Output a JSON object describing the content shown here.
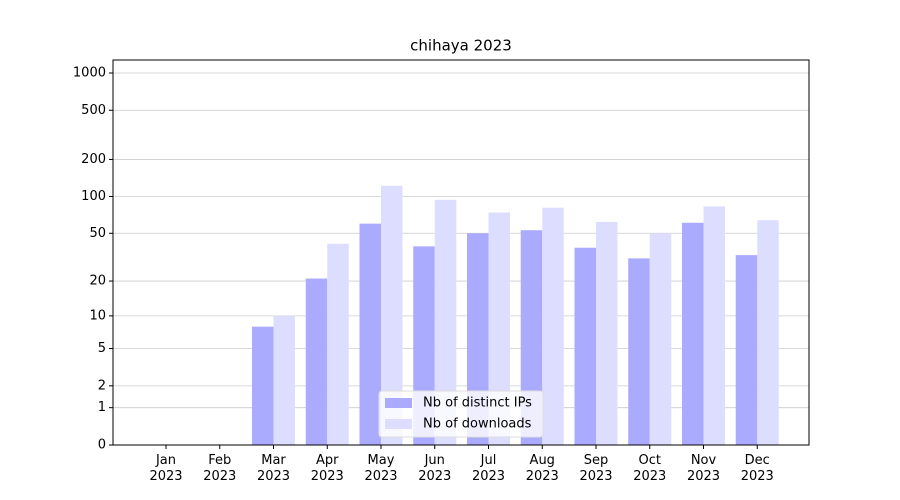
{
  "chart_data": {
    "type": "bar",
    "title": "chihaya 2023",
    "categories": [
      "Jan\n2023",
      "Feb\n2023",
      "Mar\n2023",
      "Apr\n2023",
      "May\n2023",
      "Jun\n2023",
      "Jul\n2023",
      "Aug\n2023",
      "Sep\n2023",
      "Oct\n2023",
      "Nov\n2023",
      "Dec\n2023"
    ],
    "series": [
      {
        "name": "Nb of distinct IPs",
        "color": "#aaaaff",
        "values": [
          0,
          0,
          8,
          21,
          60,
          39,
          50,
          53,
          38,
          31,
          61,
          33
        ]
      },
      {
        "name": "Nb of downloads",
        "color": "#ddddff",
        "values": [
          0,
          0,
          10,
          41,
          122,
          94,
          74,
          81,
          62,
          50,
          83,
          64
        ]
      }
    ],
    "yscale": "log1p",
    "ylim": [
      0,
      1273
    ],
    "yticks": [
      0,
      1,
      2,
      5,
      10,
      20,
      50,
      100,
      200,
      500,
      1000
    ],
    "grid": true,
    "legend": "lower center"
  }
}
